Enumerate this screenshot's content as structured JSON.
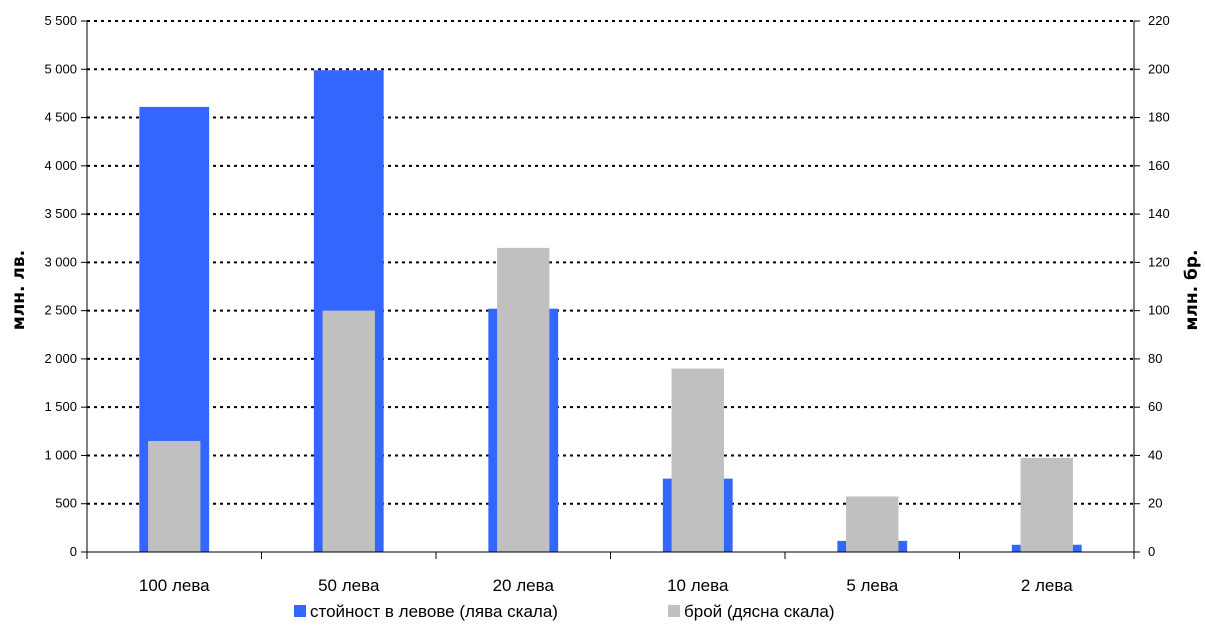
{
  "chart_data": {
    "type": "bar",
    "categories": [
      "100 лева",
      "50 лева",
      "20 лева",
      "10 лева",
      "5 лева",
      "2 лева"
    ],
    "series": [
      {
        "name": "стойност в левове (лява скала)",
        "axis": "left",
        "color": "#3366ff",
        "values": [
          4610,
          4990,
          2520,
          760,
          115,
          75
        ]
      },
      {
        "name": "брой (дясна скала)",
        "axis": "right",
        "color": "#c0c0c0",
        "values": [
          46,
          100,
          126,
          76,
          23,
          39
        ]
      }
    ],
    "ylabel": "млн. лв.",
    "y2label": "млн. бр.",
    "ylim": [
      0,
      5500
    ],
    "y2lim": [
      0,
      220
    ],
    "yticks": [
      0,
      500,
      1000,
      1500,
      2000,
      2500,
      3000,
      3500,
      4000,
      4500,
      5000,
      5500
    ],
    "ytick_labels": [
      "0",
      "500",
      "1 000",
      "1 500",
      "2 000",
      "2 500",
      "3 000",
      "3 500",
      "4 000",
      "4 500",
      "5 000",
      "5 500"
    ],
    "y2ticks": [
      0,
      20,
      40,
      60,
      80,
      100,
      120,
      140,
      160,
      180,
      200,
      220
    ],
    "y2tick_labels": [
      "0",
      "20",
      "40",
      "60",
      "80",
      "100",
      "120",
      "140",
      "160",
      "180",
      "200",
      "220"
    ],
    "grid": "horizontal dotted",
    "legend_position": "bottom"
  }
}
